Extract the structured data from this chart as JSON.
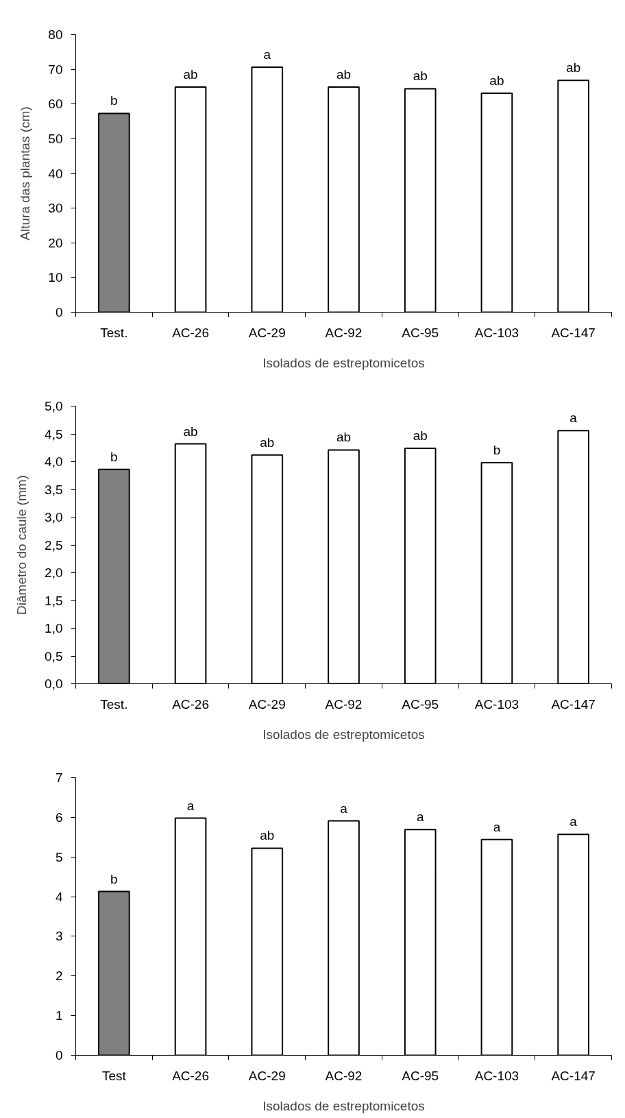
{
  "chart_data": [
    {
      "type": "bar",
      "categories": [
        "Test.",
        "AC-26",
        "AC-29",
        "AC-92",
        "AC-95",
        "AC-103",
        "AC-147"
      ],
      "values": [
        57.3,
        64.9,
        70.6,
        64.9,
        64.4,
        63.1,
        66.8
      ],
      "colors": [
        "#808080",
        "#ffffff",
        "#ffffff",
        "#ffffff",
        "#ffffff",
        "#ffffff",
        "#ffffff"
      ],
      "xlabel": "Isolados de estreptomicetos",
      "ylabel": "Altura das plantas (cm)",
      "ylim": [
        0,
        80
      ],
      "yticks": [
        0,
        10,
        20,
        30,
        40,
        50,
        60,
        70,
        80
      ],
      "grid": false,
      "annotations": [
        {
          "text": "b",
          "x": "Test.",
          "y": 57.3
        },
        {
          "text": "ab",
          "x": "AC-26",
          "y": 64.9
        },
        {
          "text": "a",
          "x": "AC-29",
          "y": 70.6
        },
        {
          "text": "ab",
          "x": "AC-92",
          "y": 64.9
        },
        {
          "text": "ab",
          "x": "AC-95",
          "y": 64.4
        },
        {
          "text": "ab",
          "x": "AC-103",
          "y": 63.1
        },
        {
          "text": "ab",
          "x": "AC-147",
          "y": 66.8
        }
      ]
    },
    {
      "type": "bar",
      "categories": [
        "Test.",
        "AC-26",
        "AC-29",
        "AC-92",
        "AC-95",
        "AC-103",
        "AC-147"
      ],
      "values": [
        3.86,
        4.32,
        4.12,
        4.21,
        4.24,
        3.98,
        4.56
      ],
      "colors": [
        "#808080",
        "#ffffff",
        "#ffffff",
        "#ffffff",
        "#ffffff",
        "#ffffff",
        "#ffffff"
      ],
      "xlabel": "Isolados de estreptomicetos",
      "ylabel": "Diâmetro do caule (mm)",
      "ylim": [
        0,
        5
      ],
      "yticks": [
        {
          "value": 0,
          "label": "0,0"
        },
        {
          "value": 0.5,
          "label": "0,5"
        },
        {
          "value": 1,
          "label": "1,0"
        },
        {
          "value": 1.5,
          "label": "1,5"
        },
        {
          "value": 2,
          "label": "2,0"
        },
        {
          "value": 2.5,
          "label": "2,5"
        },
        {
          "value": 3,
          "label": "3,0"
        },
        {
          "value": 3.5,
          "label": "3,5"
        },
        {
          "value": 4,
          "label": "4,0"
        },
        {
          "value": 4.5,
          "label": "4,5"
        },
        {
          "value": 5,
          "label": "5,0"
        }
      ],
      "grid": false,
      "annotations": [
        {
          "text": "b",
          "x": "Test.",
          "y": 3.86
        },
        {
          "text": "ab",
          "x": "AC-26",
          "y": 4.32
        },
        {
          "text": "ab",
          "x": "AC-29",
          "y": 4.12
        },
        {
          "text": "ab",
          "x": "AC-92",
          "y": 4.21
        },
        {
          "text": "ab",
          "x": "AC-95",
          "y": 4.24
        },
        {
          "text": "b",
          "x": "AC-103",
          "y": 3.98
        },
        {
          "text": "a",
          "x": "AC-147",
          "y": 4.56
        }
      ]
    },
    {
      "type": "bar",
      "categories": [
        "Test",
        "AC-26",
        "AC-29",
        "AC-92",
        "AC-95",
        "AC-103",
        "AC-147"
      ],
      "values": [
        4.13,
        5.98,
        5.22,
        5.91,
        5.69,
        5.44,
        5.57
      ],
      "colors": [
        "#808080",
        "#ffffff",
        "#ffffff",
        "#ffffff",
        "#ffffff",
        "#ffffff",
        "#ffffff"
      ],
      "xlabel": "Isolados de estreptomicetos",
      "ylim": [
        0,
        7
      ],
      "yticks": [
        0,
        1,
        2,
        3,
        4,
        5,
        6,
        7
      ],
      "grid": false,
      "annotations": [
        {
          "text": "b",
          "x": "Test",
          "y": 4.13
        },
        {
          "text": "a",
          "x": "AC-26",
          "y": 5.98
        },
        {
          "text": "ab",
          "x": "AC-29",
          "y": 5.22
        },
        {
          "text": "a",
          "x": "AC-92",
          "y": 5.91
        },
        {
          "text": "a",
          "x": "AC-95",
          "y": 5.69
        },
        {
          "text": "a",
          "x": "AC-103",
          "y": 5.44
        },
        {
          "text": "a",
          "x": "AC-147",
          "y": 5.57
        }
      ]
    }
  ]
}
